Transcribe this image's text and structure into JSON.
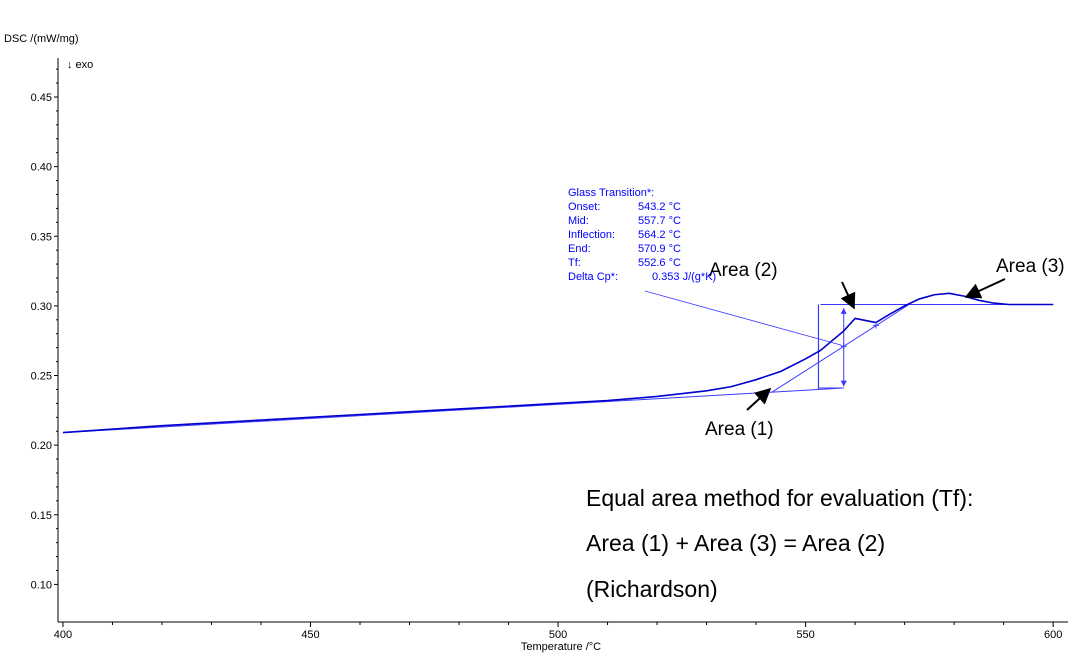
{
  "chart_data": {
    "type": "line",
    "ylabel": "DSC /(mW/mg)",
    "direction_note": "↓ exo",
    "xlabel": "Temperature /°C",
    "xlim": [
      399,
      603
    ],
    "ylim": [
      0.073,
      0.478
    ],
    "x_ticks": [
      400,
      450,
      500,
      550,
      600
    ],
    "x_tick_labels": [
      "400",
      "450",
      "500",
      "550",
      "600"
    ],
    "y_ticks": [
      0.1,
      0.15,
      0.2,
      0.25,
      0.3,
      0.35,
      0.4,
      0.45
    ],
    "y_tick_labels": [
      "0.10",
      "0.15",
      "0.20",
      "0.25",
      "0.30",
      "0.35",
      "0.40",
      "0.45"
    ],
    "grid": false,
    "colors": {
      "curve": "#0000cc",
      "annotation": "#3a3aff",
      "axis": "#000000"
    },
    "series": [
      {
        "x": [
          400,
          420,
          440,
          460,
          480,
          500,
          510,
          520,
          530,
          535,
          540,
          545,
          550,
          553,
          557.7,
          560,
          564.2,
          567,
          570,
          573,
          576,
          579,
          582,
          585,
          588,
          591,
          594,
          597,
          600
        ],
        "y": [
          0.209,
          0.214,
          0.218,
          0.222,
          0.226,
          0.23,
          0.232,
          0.235,
          0.239,
          0.242,
          0.247,
          0.253,
          0.262,
          0.268,
          0.282,
          0.291,
          0.288,
          0.294,
          0.3,
          0.305,
          0.308,
          0.309,
          0.307,
          0.304,
          0.302,
          0.301,
          0.301,
          0.301,
          0.301
        ]
      }
    ],
    "construction": {
      "lower_baseline": {
        "x": [
          400,
          557.7
        ],
        "y": [
          0.209,
          0.241
        ]
      },
      "upper_baseline": {
        "x": [
          553,
          600
        ],
        "y": [
          0.301,
          0.301
        ]
      },
      "tangent": {
        "x": [
          543.2,
          570.9
        ],
        "y": [
          0.238,
          0.301
        ]
      },
      "tf_line": {
        "x": [
          552.6,
          552.6
        ],
        "y": [
          0.24,
          0.301
        ]
      },
      "mid_line": {
        "x": [
          557.7,
          557.7
        ],
        "y": [
          0.241,
          0.301
        ]
      },
      "markers": [
        {
          "x": 557.7,
          "y": 0.271
        },
        {
          "x": 564.2,
          "y": 0.286
        }
      ]
    },
    "glass_transition": {
      "title": "Glass Transition*:",
      "rows": [
        {
          "label": "Onset:",
          "value": "543.2 °C"
        },
        {
          "label": "Mid:",
          "value": "557.7 °C"
        },
        {
          "label": "Inflection:",
          "value": "564.2 °C"
        },
        {
          "label": "End:",
          "value": "570.9 °C"
        },
        {
          "label": "Tf:",
          "value": "552.6 °C"
        },
        {
          "label": "Delta Cp*:",
          "value": "0.353 J/(g*K)"
        }
      ]
    },
    "area_labels": {
      "area1": "Area (1)",
      "area2": "Area (2)",
      "area3": "Area (3)"
    },
    "caption": {
      "line1": "Equal area method for evaluation (Tf):",
      "line2": "Area (1) + Area (3) = Area (2)",
      "line3": "(Richardson)"
    }
  }
}
